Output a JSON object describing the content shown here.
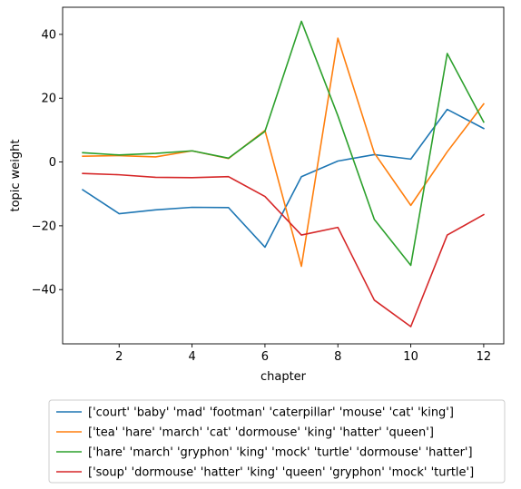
{
  "chart_data": {
    "type": "line",
    "xlabel": "chapter",
    "ylabel": "topic weight",
    "x": [
      1,
      2,
      3,
      4,
      5,
      6,
      7,
      8,
      9,
      10,
      11,
      12
    ],
    "xlim": [
      0.45,
      12.55
    ],
    "ylim": [
      -57,
      48.5
    ],
    "xticks": [
      2,
      4,
      6,
      8,
      10,
      12
    ],
    "yticks": [
      -40,
      -20,
      0,
      20,
      40
    ],
    "xtick_labels": [
      "2",
      "4",
      "6",
      "8",
      "10",
      "12"
    ],
    "ytick_labels": [
      "−40",
      "−20",
      "0",
      "20",
      "40"
    ],
    "grid": false,
    "legend_position": "below plot",
    "series": [
      {
        "name": "['court' 'baby' 'mad' 'footman' 'caterpillar' 'mouse' 'cat' 'king']",
        "color": "#1f77b4",
        "values": [
          -8.7,
          -16.2,
          -15.0,
          -14.2,
          -14.3,
          -26.7,
          -4.6,
          0.3,
          2.3,
          0.9,
          16.5,
          10.5
        ]
      },
      {
        "name": "['tea' 'hare' 'march' 'cat' 'dormouse' 'king' 'hatter' 'queen']",
        "color": "#ff7f0e",
        "values": [
          1.8,
          2.0,
          1.6,
          3.5,
          1.1,
          9.9,
          -32.7,
          38.8,
          2.8,
          -13.6,
          3.2,
          18.2
        ]
      },
      {
        "name": "['hare' 'march' 'gryphon' 'king' 'mock' 'turtle' 'dormouse' 'hatter']",
        "color": "#2ca02c",
        "values": [
          2.9,
          2.2,
          2.7,
          3.5,
          1.2,
          9.6,
          44.1,
          14.5,
          -18.0,
          -32.4,
          34.0,
          12.5
        ]
      },
      {
        "name": "['soup' 'dormouse' 'hatter' 'king' 'queen' 'gryphon' 'mock' 'turtle']",
        "color": "#d62728",
        "values": [
          -3.6,
          -4.0,
          -4.8,
          -4.9,
          -4.6,
          -10.8,
          -22.9,
          -20.5,
          -43.3,
          -51.6,
          -22.9,
          -16.5
        ]
      }
    ]
  }
}
